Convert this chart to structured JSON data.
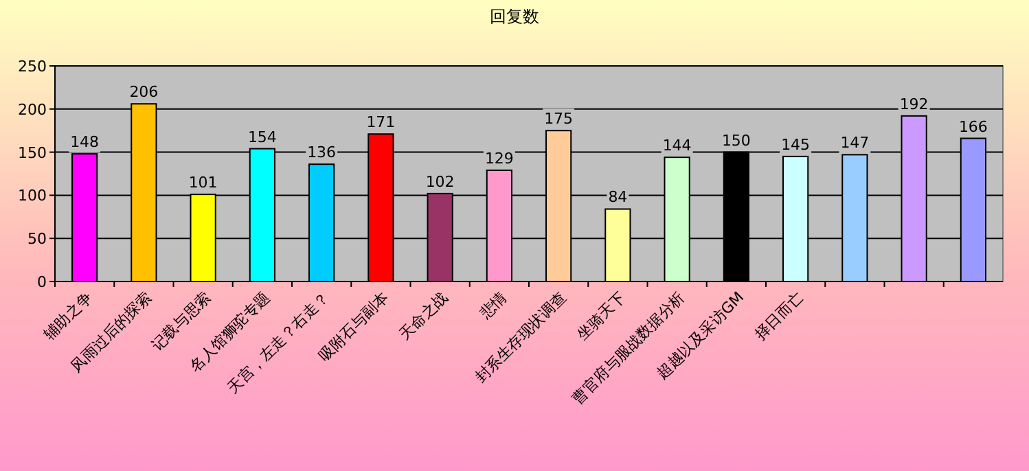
{
  "chart_data": {
    "type": "bar",
    "title": "回复数",
    "categories": [
      "辅助之争",
      "风雨过后的探索",
      "记载与思索",
      "名人馆狮驼专题",
      "天宫，左走？右走？",
      "吸附石与副本",
      "天命之战",
      "悲情",
      "封系生存现状调查",
      "坐骑天下",
      "曹官府与服战数据分析",
      "超越以及采访GM",
      "择日而亡",
      null,
      null,
      null
    ],
    "values": [
      148,
      206,
      101,
      154,
      136,
      171,
      102,
      129,
      175,
      84,
      144,
      150,
      145,
      147,
      192,
      166
    ],
    "colors": [
      "#ff00ff",
      "#ffc000",
      "#ffff00",
      "#00ffff",
      "#00ccff",
      "#ff0000",
      "#993366",
      "#ff99cc",
      "#ffcc99",
      "#ffff99",
      "#ccffcc",
      "#000000",
      "#ccffff",
      "#99ccff",
      "#cc99ff",
      "#9999ff"
    ],
    "ylim": [
      0,
      250
    ],
    "yticks": [
      0,
      50,
      100,
      150,
      200,
      250
    ],
    "grid": "y",
    "data_labels": true
  }
}
